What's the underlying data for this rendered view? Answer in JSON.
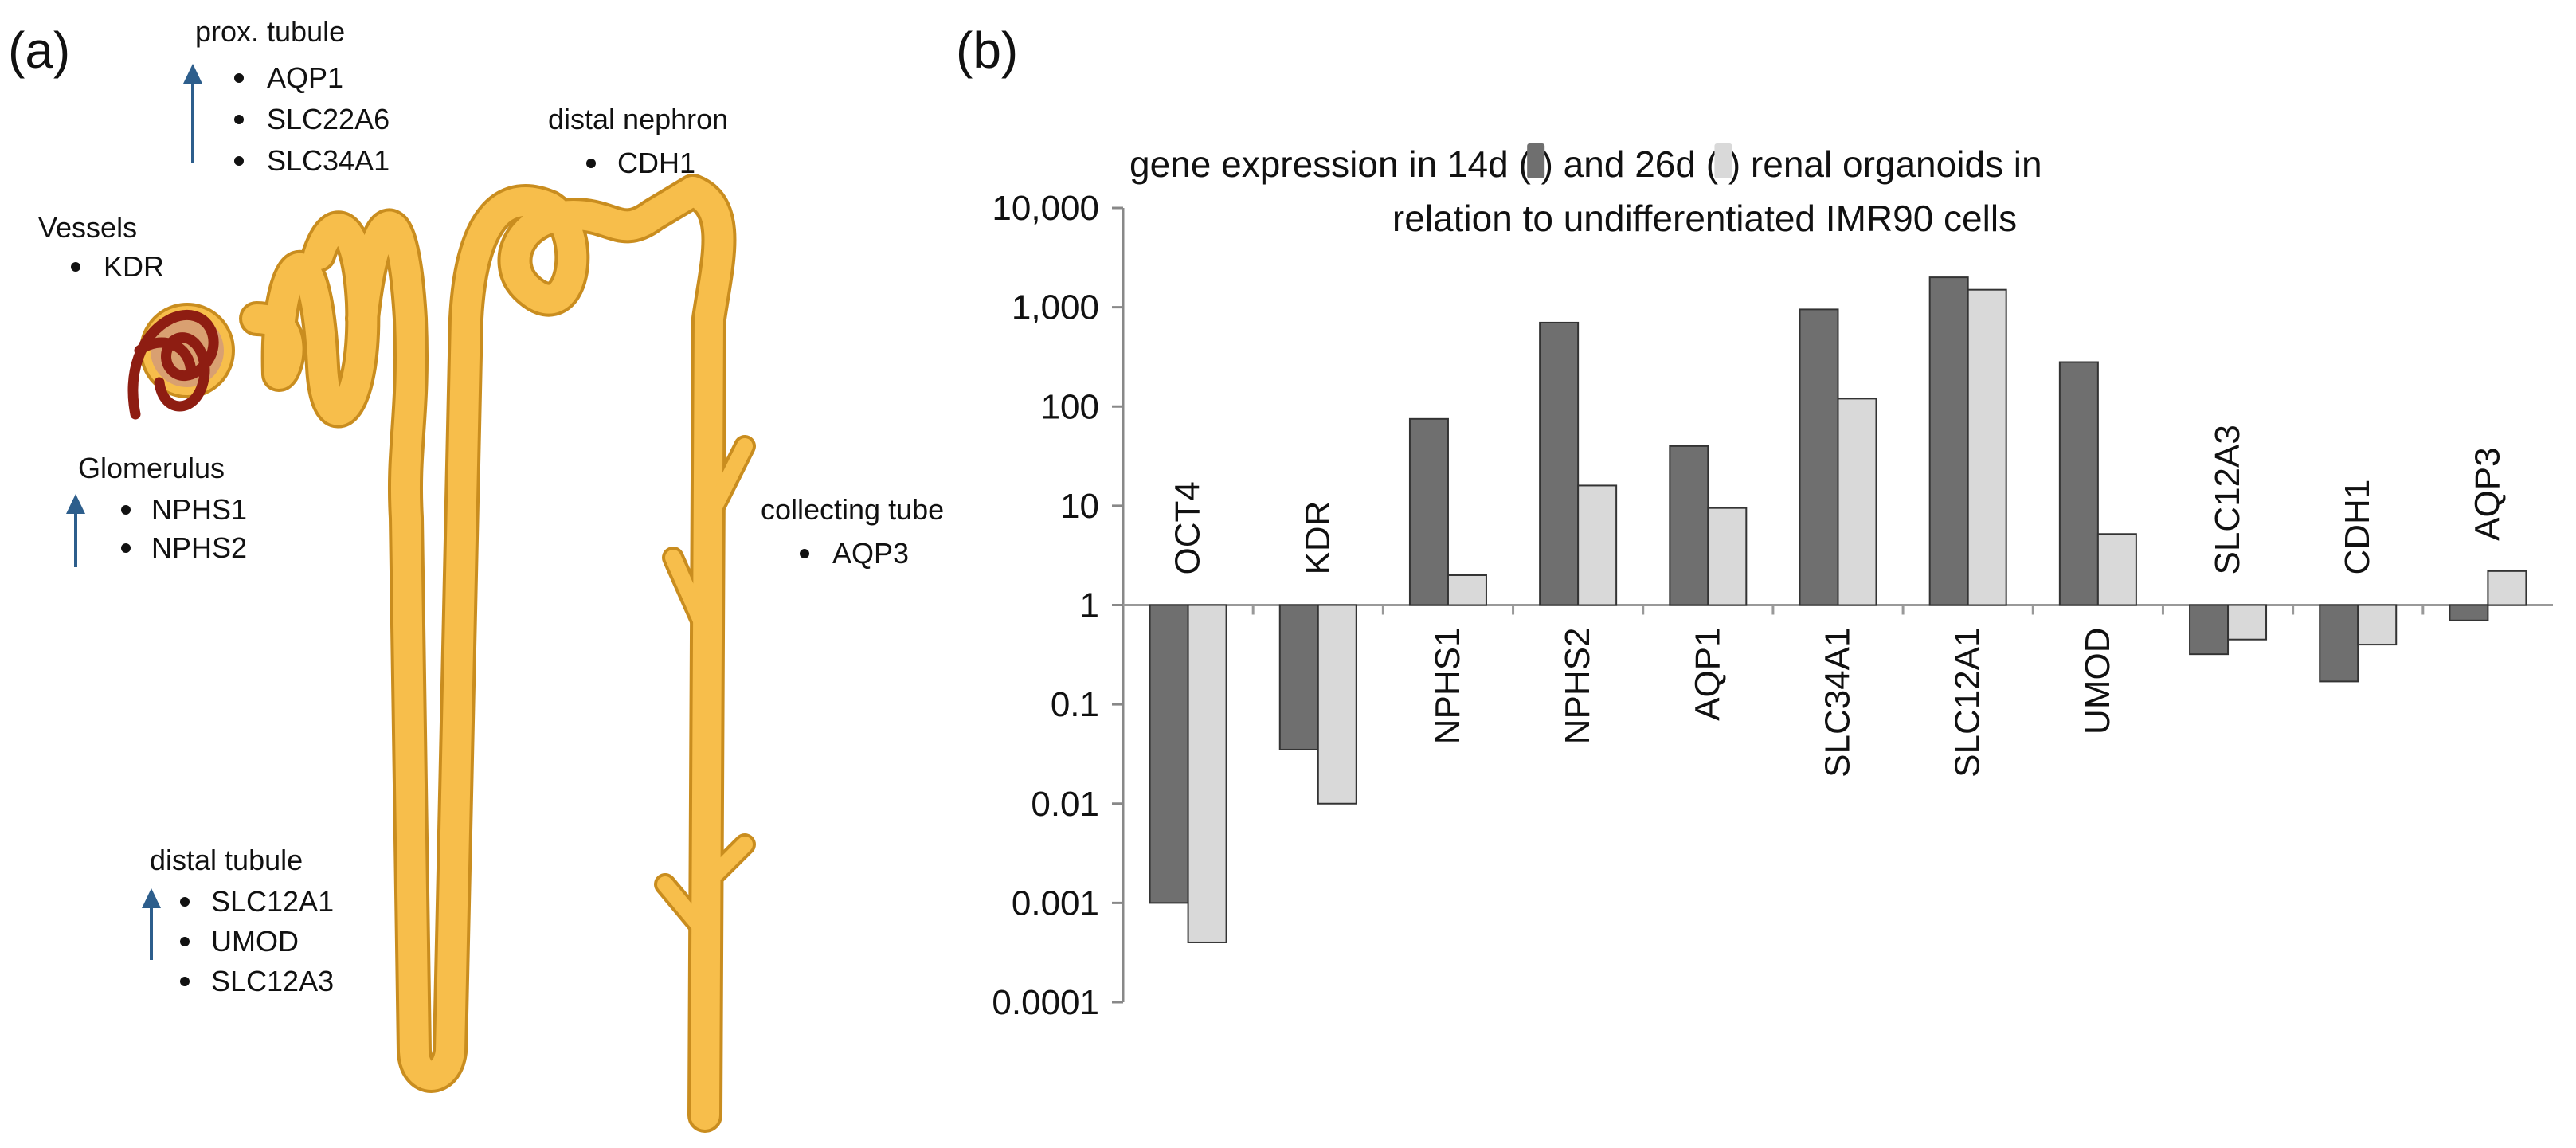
{
  "panel_a": {
    "label": "(a)",
    "groups": [
      {
        "name": "prox_tubule",
        "title": "prox. tubule",
        "genes": [
          "AQP1",
          "SLC22A6",
          "SLC34A1"
        ],
        "arrow": "up"
      },
      {
        "name": "vessels",
        "title": "Vessels",
        "genes": [
          "KDR"
        ],
        "arrow": "none"
      },
      {
        "name": "distal_nephron",
        "title": "distal nephron",
        "genes": [
          "CDH1"
        ],
        "arrow": "none"
      },
      {
        "name": "glomerulus",
        "title": "Glomerulus",
        "genes": [
          "NPHS1",
          "NPHS2"
        ],
        "arrow": "up"
      },
      {
        "name": "collecting_tube",
        "title": "collecting tube",
        "genes": [
          "AQP3"
        ],
        "arrow": "none"
      },
      {
        "name": "distal_tubule",
        "title": "distal tubule",
        "genes": [
          "SLC12A1",
          "UMOD",
          "SLC12A3"
        ],
        "arrow": "up"
      }
    ],
    "colors": {
      "tubule": "#F7BE4B",
      "tubule_edge": "#C98D1F",
      "glom_capsule": "#D9A071",
      "glom_vessel": "#8E1D12",
      "arrow": "#2D5E8C"
    }
  },
  "panel_b": {
    "label": "(b)",
    "legend_14d_color": "#6F6F6F",
    "legend_26d_color": "#D9D9D9"
  },
  "chart_data": {
    "type": "bar",
    "scale": "log",
    "title_parts": [
      "gene expression in 14d (",
      ") and 26d (",
      ") renal organoids in"
    ],
    "title_line2": "relation to undifferentiated IMR90 cells",
    "categories": [
      "OCT4",
      "KDR",
      "NPHS1",
      "NPHS2",
      "AQP1",
      "SLC34A1",
      "SLC12A1",
      "UMOD",
      "SLC12A3",
      "CDH1",
      "AQP3"
    ],
    "series": [
      {
        "name": "14d",
        "color": "#6F6F6F",
        "values": [
          0.001,
          0.035,
          75,
          700,
          40,
          950,
          2000,
          280,
          0.32,
          0.17,
          0.7
        ]
      },
      {
        "name": "26d",
        "color": "#D9D9D9",
        "values": [
          0.0004,
          0.01,
          2,
          16,
          9.5,
          120,
          1500,
          5.2,
          0.45,
          0.4,
          2.2
        ]
      }
    ],
    "ylim": [
      0.0001,
      10000
    ],
    "yticks": [
      0.0001,
      0.001,
      0.01,
      0.1,
      1,
      10,
      100,
      1000,
      10000
    ],
    "ytick_labels": [
      "0.0001",
      "0.001",
      "0.01",
      "0.1",
      "1",
      "10",
      "100",
      "1,000",
      "10,000"
    ],
    "baseline": 1,
    "xlabel": "",
    "ylabel": ""
  }
}
